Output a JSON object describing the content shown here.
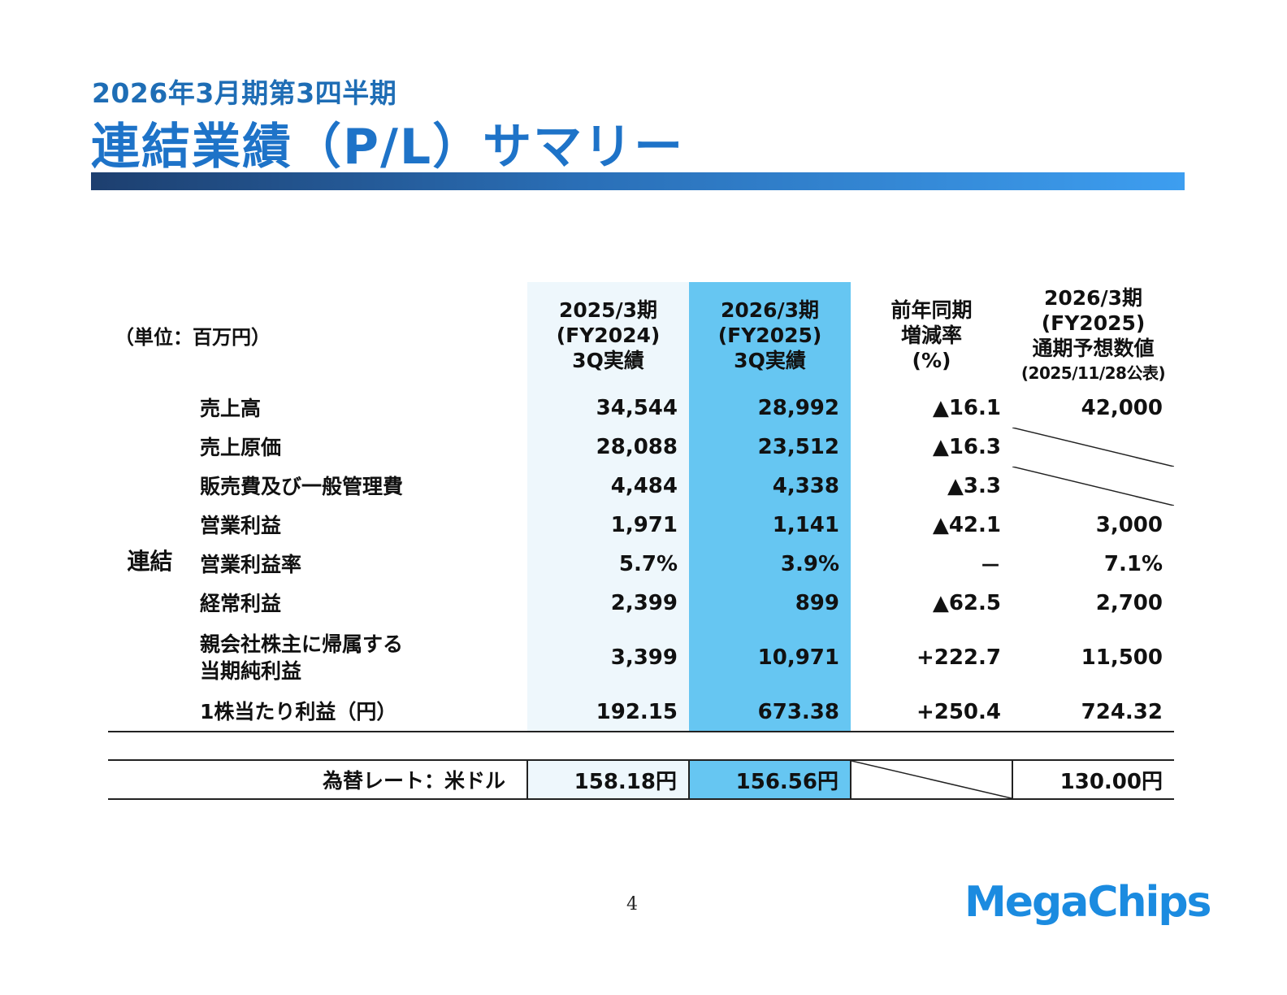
{
  "header": {
    "subtitle": "2026年3月期第3四半期",
    "title": "連結業績（P/L）サマリー"
  },
  "table": {
    "unit": "（単位：百万円）",
    "columns": {
      "prev": {
        "line1": "2025/3期",
        "line2": "(FY2024)",
        "line3": "3Q実績"
      },
      "cur": {
        "line1": "2026/3期",
        "line2": "(FY2025)",
        "line3": "3Q実績"
      },
      "chg": {
        "line1": "前年同期",
        "line2": "増減率",
        "line3": "(%)"
      },
      "fc": {
        "line1": "2026/3期",
        "line2": "(FY2025)",
        "line3": "通期予想数値",
        "line4": "(2025/11/28公表)"
      }
    },
    "group_label": "連結",
    "rows": [
      {
        "label": "売上高",
        "prev": "34,544",
        "cur": "28,992",
        "chg": "▲16.1",
        "fc": "42,000"
      },
      {
        "label": "売上原価",
        "prev": "28,088",
        "cur": "23,512",
        "chg": "▲16.3",
        "fc": ""
      },
      {
        "label": "販売費及び一般管理費",
        "prev": "4,484",
        "cur": "4,338",
        "chg": "▲3.3",
        "fc": ""
      },
      {
        "label": "営業利益",
        "prev": "1,971",
        "cur": "1,141",
        "chg": "▲42.1",
        "fc": "3,000"
      },
      {
        "label": "営業利益率",
        "prev": "5.7%",
        "cur": "3.9%",
        "chg": "－",
        "fc": "7.1%"
      },
      {
        "label": "経常利益",
        "prev": "2,399",
        "cur": "899",
        "chg": "▲62.5",
        "fc": "2,700"
      },
      {
        "label_line1": "親会社株主に帰属する",
        "label_line2": "当期純利益",
        "prev": "3,399",
        "cur": "10,971",
        "chg": "+222.7",
        "fc": "11,500"
      },
      {
        "label": "1株当たり利益（円）",
        "prev": "192.15",
        "cur": "673.38",
        "chg": "+250.4",
        "fc": "724.32"
      }
    ],
    "fx": {
      "label": "為替レート：米ドル",
      "prev": "158.18円",
      "cur": "156.56円",
      "chg": "",
      "fc": "130.00円"
    }
  },
  "footer": {
    "page_number": "4",
    "logo_text": "MegaChips"
  },
  "colors": {
    "title": "#1e73c8",
    "current_column": "#66c6f2",
    "previous_column": "#eef7fc",
    "logo": "#1b8be0"
  }
}
